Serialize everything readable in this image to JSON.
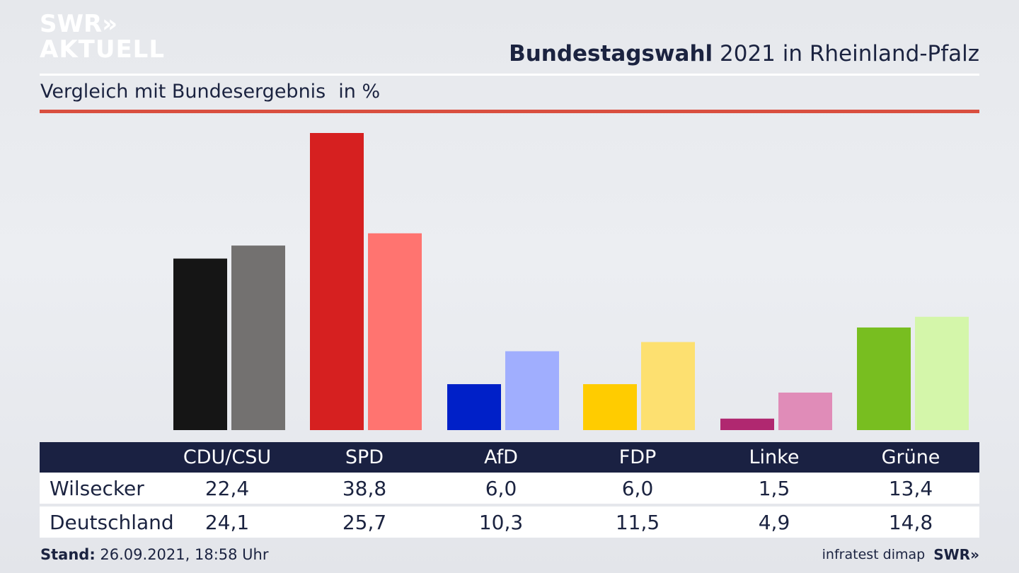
{
  "brand": {
    "logo_line1": "SWR»",
    "logo_line2": "AKTUELL",
    "footer_logo": "SWR»"
  },
  "header": {
    "title_bold": "Bundestagswahl",
    "title_rest": " 2021 in Rheinland-Pfalz"
  },
  "subtitle": {
    "text": "Vergleich mit Bundesergebnis",
    "unit": "in %"
  },
  "table": {
    "parties": [
      "CDU/CSU",
      "SPD",
      "AfD",
      "FDP",
      "Linke",
      "Grüne"
    ],
    "rows": [
      {
        "label": "Wilsecker",
        "values": [
          "22,4",
          "38,8",
          "6,0",
          "6,0",
          "1,5",
          "13,4"
        ]
      },
      {
        "label": "Deutschland",
        "values": [
          "24,1",
          "25,7",
          "10,3",
          "11,5",
          "4,9",
          "14,8"
        ]
      }
    ]
  },
  "footer": {
    "stand_label": "Stand:",
    "stand_value": " 26.09.2021, 18:58 Uhr",
    "source": "infratest dimap"
  },
  "colors": {
    "wilsecker": [
      "#151515",
      "#d62020",
      "#0020c8",
      "#ffcc00",
      "#b02870",
      "#78be20"
    ],
    "deutschland": [
      "#737170",
      "#ff7470",
      "#a0aefe",
      "#fde070",
      "#e08cb8",
      "#d4f6aa"
    ],
    "header_bg": "#1a2142",
    "accent_rule": "#d94f3f"
  },
  "chart_data": {
    "type": "bar",
    "categories": [
      "CDU/CSU",
      "SPD",
      "AfD",
      "FDP",
      "Linke",
      "Grüne"
    ],
    "series": [
      {
        "name": "Wilsecker",
        "values": [
          22.4,
          38.8,
          6.0,
          6.0,
          1.5,
          13.4
        ]
      },
      {
        "name": "Deutschland",
        "values": [
          24.1,
          25.7,
          10.3,
          11.5,
          4.9,
          14.8
        ]
      }
    ],
    "title": "Bundestagswahl 2021 in Rheinland-Pfalz",
    "subtitle": "Vergleich mit Bundesergebnis in %",
    "grid": false,
    "legend": "table-below"
  }
}
